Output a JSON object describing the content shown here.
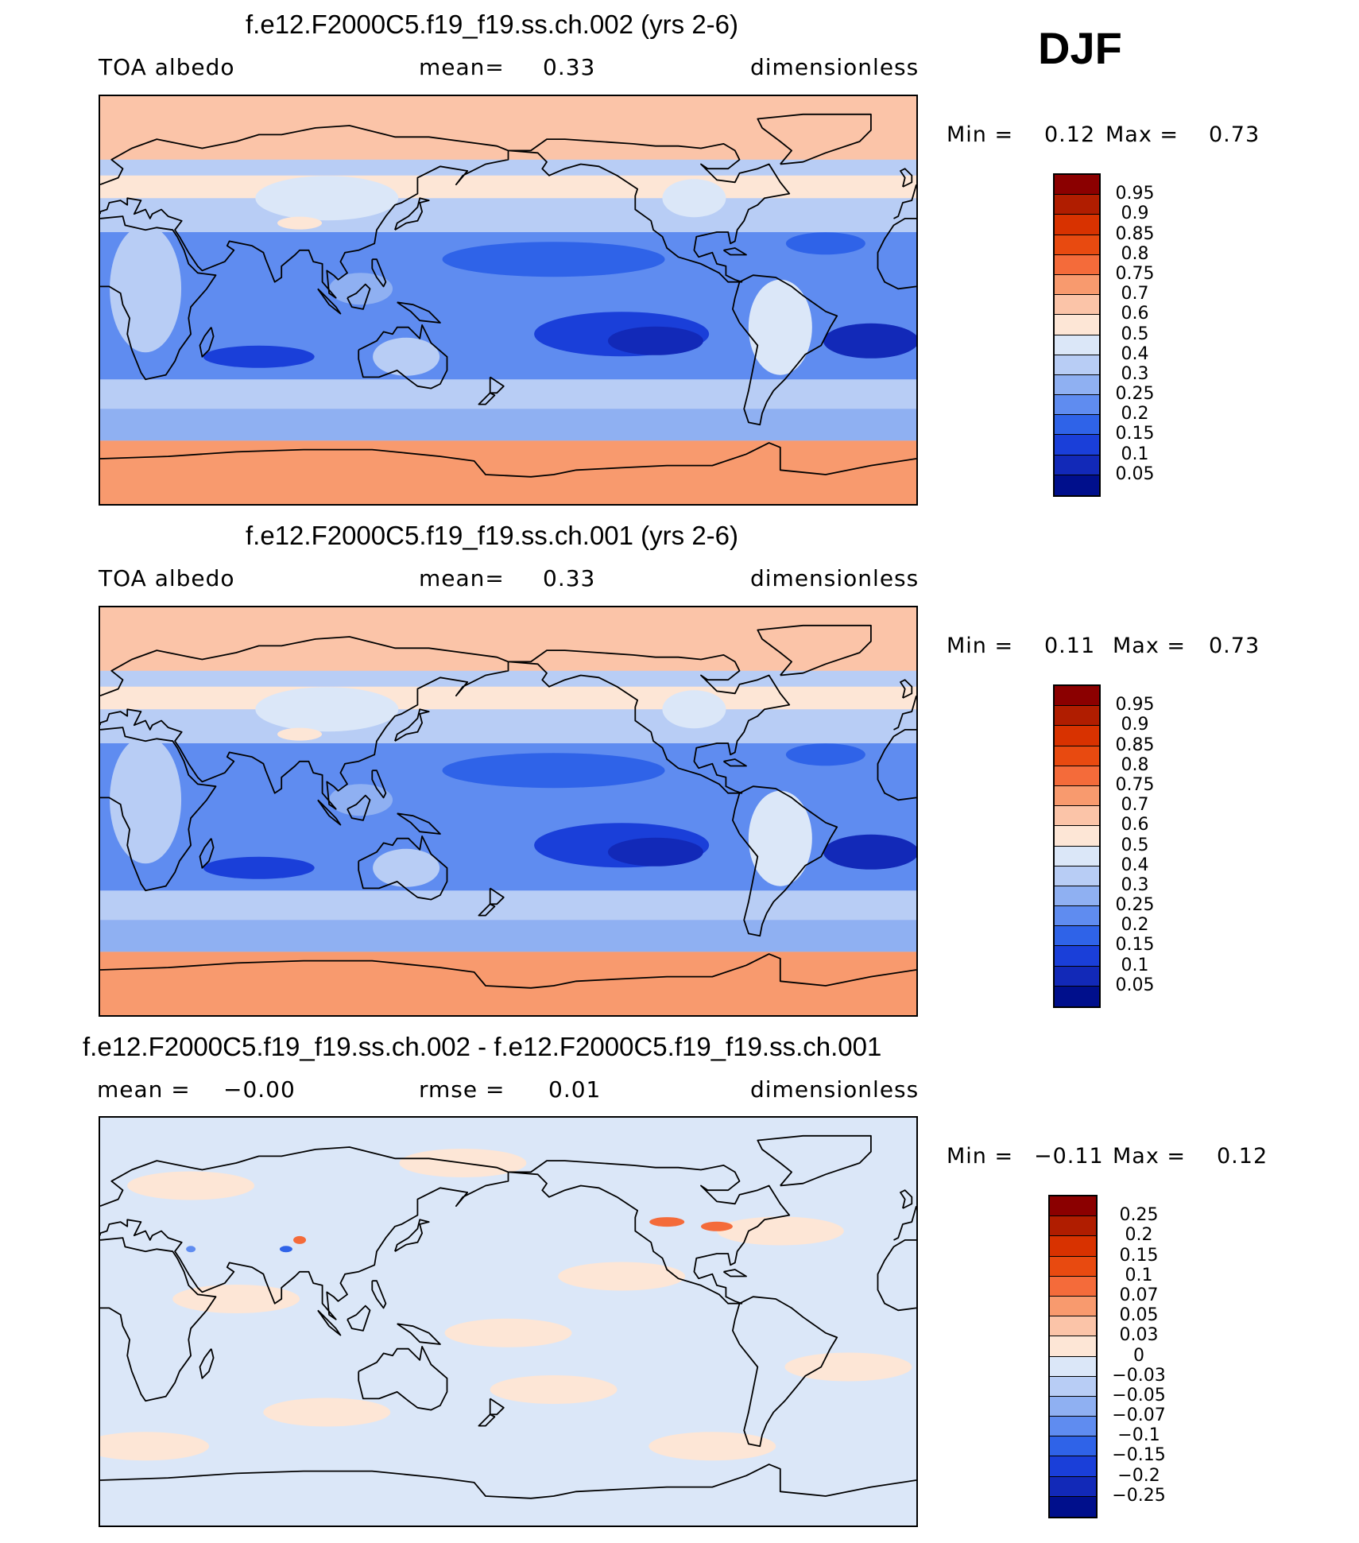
{
  "season": "DJF",
  "panels": [
    {
      "title": "f.e12.F2000C5.f19_f19.ss.ch.002 (yrs 2-6)",
      "left": "TOA albedo",
      "mid_label": "mean=",
      "mid_value": "0.33",
      "right": "dimensionless",
      "min_label": "Min =",
      "min_value": "0.12",
      "max_label": "Max =",
      "max_value": "0.73",
      "kind": "abs"
    },
    {
      "title": "f.e12.F2000C5.f19_f19.ss.ch.001 (yrs 2-6)",
      "left": "TOA albedo",
      "mid_label": "mean=",
      "mid_value": "0.33",
      "right": "dimensionless",
      "min_label": "Min =",
      "min_value": "0.11",
      "max_label": "Max =",
      "max_value": "0.73",
      "kind": "abs"
    },
    {
      "title": "f.e12.F2000C5.f19_f19.ss.ch.002 - f.e12.F2000C5.f19_f19.ss.ch.001",
      "left_label": "mean =",
      "left_value": "−0.00",
      "mid_label": "rmse =",
      "mid_value": "0.01",
      "right": "dimensionless",
      "min_label": "Min =",
      "min_value": "−0.11",
      "max_label": "Max =",
      "max_value": "0.12",
      "kind": "diff"
    }
  ],
  "colorbars": {
    "abs": {
      "labels": [
        "0.95",
        "0.9",
        "0.85",
        "0.8",
        "0.75",
        "0.7",
        "0.6",
        "0.5",
        "0.4",
        "0.3",
        "0.25",
        "0.2",
        "0.15",
        "0.1",
        "0.05"
      ],
      "colors": [
        "#8b0000",
        "#b01d00",
        "#d83200",
        "#e84a10",
        "#f46b3a",
        "#f89a6e",
        "#fbc4a8",
        "#fde6d6",
        "#dbe7f8",
        "#b8cdf5",
        "#8fb0f2",
        "#5f8cf0",
        "#2f63e8",
        "#1a3fd9",
        "#1229b8",
        "#000f8c"
      ]
    },
    "diff": {
      "labels": [
        "0.25",
        "0.2",
        "0.15",
        "0.1",
        "0.07",
        "0.05",
        "0.03",
        "0",
        "−0.03",
        "−0.05",
        "−0.07",
        "−0.1",
        "−0.15",
        "−0.2",
        "−0.25"
      ],
      "colors": [
        "#8b0000",
        "#b01d00",
        "#d83200",
        "#e84a10",
        "#f46b3a",
        "#f89a6e",
        "#fbc4a8",
        "#fde6d6",
        "#dbe7f8",
        "#b8cdf5",
        "#8fb0f2",
        "#5f8cf0",
        "#2f63e8",
        "#1a3fd9",
        "#1229b8",
        "#000f8c"
      ]
    }
  },
  "chart_data": [
    {
      "type": "heatmap",
      "title": "f.e12.F2000C5.f19_f19.ss.ch.002 (yrs 2-6)",
      "variable": "TOA albedo",
      "units": "dimensionless",
      "mean": 0.33,
      "min": 0.12,
      "max": 0.73,
      "contour_levels": [
        0.05,
        0.1,
        0.15,
        0.2,
        0.25,
        0.3,
        0.4,
        0.5,
        0.6,
        0.7,
        0.75,
        0.8,
        0.85,
        0.9,
        0.95
      ]
    },
    {
      "type": "heatmap",
      "title": "f.e12.F2000C5.f19_f19.ss.ch.001 (yrs 2-6)",
      "variable": "TOA albedo",
      "units": "dimensionless",
      "mean": 0.33,
      "min": 0.11,
      "max": 0.73,
      "contour_levels": [
        0.05,
        0.1,
        0.15,
        0.2,
        0.25,
        0.3,
        0.4,
        0.5,
        0.6,
        0.7,
        0.75,
        0.8,
        0.85,
        0.9,
        0.95
      ]
    },
    {
      "type": "heatmap",
      "title": "f.e12.F2000C5.f19_f19.ss.ch.002 - f.e12.F2000C5.f19_f19.ss.ch.001",
      "units": "dimensionless",
      "mean": -0.0,
      "rmse": 0.01,
      "min": -0.11,
      "max": 0.12,
      "contour_levels": [
        -0.25,
        -0.2,
        -0.15,
        -0.1,
        -0.07,
        -0.05,
        -0.03,
        0,
        0.03,
        0.05,
        0.07,
        0.1,
        0.15,
        0.2,
        0.25
      ]
    }
  ]
}
